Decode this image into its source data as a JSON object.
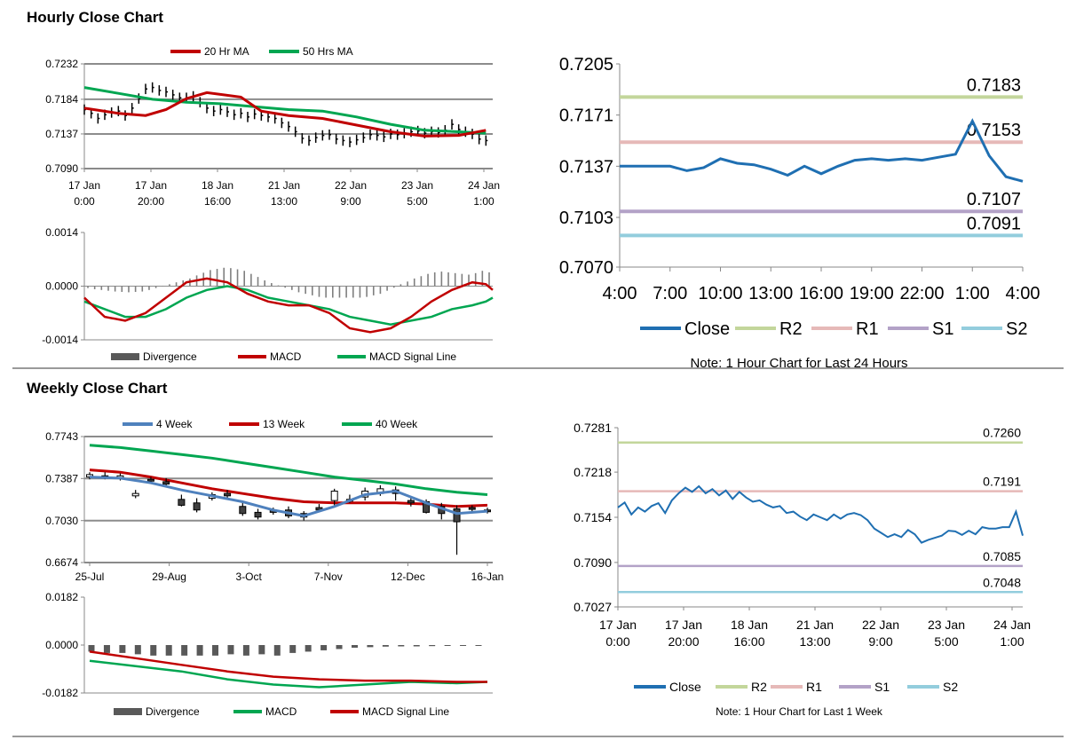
{
  "titles": {
    "hourly": "Hourly Close Chart",
    "weekly": "Weekly Close Chart"
  },
  "colors": {
    "red": "#c00000",
    "green": "#00a651",
    "blue": "#4f81bd",
    "close": "#1f6fb2",
    "r2": "#c3d69b",
    "r1": "#e6b9b8",
    "s1": "#b3a2c7",
    "s2": "#93cddd",
    "bar": "#000000",
    "div": "#7f7f7f"
  },
  "chart_data": [
    {
      "id": "hourly-price",
      "type": "line",
      "title": "",
      "x_tick_labels": [
        [
          "17 Jan",
          "0:00"
        ],
        [
          "17 Jan",
          "20:00"
        ],
        [
          "18 Jan",
          "16:00"
        ],
        [
          "21 Jan",
          "13:00"
        ],
        [
          "22 Jan",
          "9:00"
        ],
        [
          "23 Jan",
          "5:00"
        ],
        [
          "24 Jan",
          "1:00"
        ]
      ],
      "y_ticks": [
        "0.7232",
        "0.7184",
        "0.7137",
        "0.7090"
      ],
      "ylim": [
        0.709,
        0.7232
      ],
      "xlim": [
        0,
        120
      ],
      "series": [
        {
          "name": "20 Hr MA",
          "x": [
            0,
            10,
            18,
            24,
            30,
            36,
            46,
            52,
            60,
            70,
            80,
            90,
            100,
            110,
            118
          ],
          "values": [
            0.7172,
            0.7165,
            0.7162,
            0.717,
            0.7185,
            0.7193,
            0.7187,
            0.7168,
            0.7162,
            0.7158,
            0.7149,
            0.714,
            0.7134,
            0.7135,
            0.7142
          ]
        },
        {
          "name": "50 Hrs MA",
          "x": [
            0,
            10,
            20,
            30,
            40,
            50,
            60,
            70,
            80,
            90,
            100,
            110,
            118
          ],
          "values": [
            0.72,
            0.7192,
            0.7184,
            0.718,
            0.7178,
            0.7174,
            0.717,
            0.7168,
            0.716,
            0.715,
            0.7142,
            0.714,
            0.7138
          ]
        }
      ],
      "price_bars_x": [
        0,
        2,
        4,
        6,
        8,
        10,
        12,
        14,
        16,
        18,
        20,
        22,
        24,
        26,
        28,
        30,
        32,
        34,
        36,
        38,
        40,
        42,
        44,
        46,
        48,
        50,
        52,
        54,
        56,
        58,
        60,
        62,
        64,
        66,
        68,
        70,
        72,
        74,
        76,
        78,
        80,
        82,
        84,
        86,
        88,
        90,
        92,
        94,
        96,
        98,
        100,
        102,
        104,
        106,
        108,
        110,
        112,
        114,
        116,
        118
      ],
      "price_bars_close": [
        0.717,
        0.7165,
        0.7158,
        0.7163,
        0.7166,
        0.7168,
        0.7162,
        0.7172,
        0.7185,
        0.7198,
        0.72,
        0.7196,
        0.7194,
        0.719,
        0.7186,
        0.7186,
        0.7188,
        0.718,
        0.7172,
        0.7168,
        0.717,
        0.7167,
        0.7163,
        0.7165,
        0.716,
        0.7164,
        0.7162,
        0.716,
        0.7158,
        0.7152,
        0.7147,
        0.714,
        0.7131,
        0.7128,
        0.7132,
        0.7135,
        0.7136,
        0.713,
        0.7128,
        0.7126,
        0.7129,
        0.7132,
        0.7136,
        0.7135,
        0.7133,
        0.7137,
        0.7136,
        0.7138,
        0.714,
        0.7141,
        0.7138,
        0.714,
        0.7139,
        0.7142,
        0.715,
        0.7143,
        0.714,
        0.7137,
        0.713,
        0.7128
      ],
      "legend_position": "top"
    },
    {
      "id": "hourly-macd",
      "type": "line",
      "y_ticks": [
        "0.0014",
        "0.0000",
        "-0.0014"
      ],
      "ylim": [
        -0.0014,
        0.0014
      ],
      "xlim": [
        0,
        120
      ],
      "divergence_values": [
        -5e-05,
        -8e-05,
        -0.0001,
        -0.00012,
        -0.00014,
        -0.00015,
        -0.00016,
        -0.00015,
        -0.00014,
        -0.0001,
        -5e-05,
        1e-05,
        5e-05,
        0.0001,
        0.00015,
        0.0002,
        0.00028,
        0.00035,
        0.00042,
        0.00045,
        0.00048,
        0.00047,
        0.00044,
        0.0004,
        0.00032,
        0.00024,
        0.00015,
        8e-05,
        2e-05,
        -4e-05,
        -0.0001,
        -0.00016,
        -0.0002,
        -0.00024,
        -0.00028,
        -0.0003,
        -0.0003,
        -0.0003,
        -0.0003,
        -0.0003,
        -0.0003,
        -0.00028,
        -0.00024,
        -0.0002,
        -0.00012,
        -4e-05,
        5e-05,
        0.00012,
        0.0002,
        0.00026,
        0.00032,
        0.00036,
        0.00038,
        0.00036,
        0.00034,
        0.00032,
        0.0003,
        0.00034,
        0.0004,
        0.00036
      ],
      "series": [
        {
          "name": "Divergence"
        },
        {
          "name": "MACD",
          "x": [
            0,
            6,
            12,
            18,
            24,
            30,
            36,
            42,
            48,
            54,
            60,
            66,
            72,
            78,
            84,
            90,
            96,
            102,
            108,
            114,
            118,
            120
          ],
          "values": [
            -0.0003,
            -0.0008,
            -0.0009,
            -0.0007,
            -0.0003,
            0.0001,
            0.0002,
            0.0001,
            -0.0002,
            -0.0004,
            -0.0005,
            -0.0005,
            -0.0007,
            -0.0011,
            -0.0012,
            -0.0011,
            -0.0008,
            -0.0004,
            -0.0001,
            0.0001,
            5e-05,
            -0.0001
          ]
        },
        {
          "name": "MACD Signal Line",
          "x": [
            0,
            6,
            12,
            18,
            24,
            30,
            36,
            42,
            48,
            54,
            60,
            66,
            72,
            78,
            84,
            90,
            96,
            102,
            108,
            114,
            118,
            120
          ],
          "values": [
            -0.0004,
            -0.0006,
            -0.0008,
            -0.0008,
            -0.0006,
            -0.0003,
            -0.0001,
            0,
            -0.0001,
            -0.0003,
            -0.0004,
            -0.0005,
            -0.0006,
            -0.0008,
            -0.0009,
            -0.001,
            -0.0009,
            -0.0008,
            -0.0006,
            -0.0005,
            -0.0004,
            -0.0003
          ]
        }
      ]
    },
    {
      "id": "hourly-24h",
      "type": "line",
      "note": "Note: 1 Hour Chart for Last 24 Hours",
      "x_ticks": [
        "4:00",
        "7:00",
        "10:00",
        "13:00",
        "16:00",
        "19:00",
        "22:00",
        "1:00",
        "4:00"
      ],
      "y_ticks": [
        "0.7205",
        "0.7171",
        "0.7137",
        "0.7103",
        "0.7070"
      ],
      "ylim": [
        0.707,
        0.7205
      ],
      "xlim": [
        0,
        24
      ],
      "levels": [
        {
          "name": "R2",
          "value": 0.7183,
          "label": "0.7183"
        },
        {
          "name": "R1",
          "value": 0.7153,
          "label": "0.7153"
        },
        {
          "name": "S1",
          "value": 0.7107,
          "label": "0.7107"
        },
        {
          "name": "S2",
          "value": 0.7091,
          "label": "0.7091"
        }
      ],
      "series": [
        {
          "name": "Close",
          "x": [
            0,
            1,
            2,
            3,
            4,
            5,
            6,
            7,
            8,
            9,
            10,
            11,
            12,
            13,
            14,
            15,
            16,
            17,
            18,
            19,
            20,
            21,
            22,
            23,
            24
          ],
          "values": [
            0.7137,
            0.7137,
            0.7137,
            0.7137,
            0.7134,
            0.7136,
            0.7142,
            0.7139,
            0.7138,
            0.7135,
            0.7131,
            0.7137,
            0.7132,
            0.7137,
            0.7141,
            0.7142,
            0.7141,
            0.7142,
            0.7141,
            0.7143,
            0.7145,
            0.7167,
            0.7144,
            0.713,
            0.7127
          ]
        }
      ],
      "legend": [
        "Close",
        "R2",
        "R1",
        "S1",
        "S2"
      ]
    },
    {
      "id": "weekly-price",
      "type": "line",
      "x_ticks": [
        "25-Jul",
        "29-Aug",
        "3-Oct",
        "7-Nov",
        "12-Dec",
        "16-Jan"
      ],
      "y_ticks": [
        "0.7743",
        "0.7387",
        "0.7030",
        "0.6674"
      ],
      "ylim": [
        0.6674,
        0.7743
      ],
      "xlim": [
        0,
        26
      ],
      "series": [
        {
          "name": "4 Week",
          "x": [
            0,
            2,
            4,
            6,
            8,
            10,
            12,
            14,
            16,
            18,
            20,
            22,
            24,
            26
          ],
          "values": [
            0.74,
            0.739,
            0.735,
            0.729,
            0.724,
            0.719,
            0.712,
            0.707,
            0.715,
            0.725,
            0.728,
            0.718,
            0.709,
            0.711
          ]
        },
        {
          "name": "13 Week",
          "x": [
            0,
            2,
            4,
            6,
            8,
            10,
            12,
            14,
            16,
            18,
            20,
            22,
            24,
            26
          ],
          "values": [
            0.746,
            0.744,
            0.74,
            0.735,
            0.73,
            0.726,
            0.722,
            0.719,
            0.718,
            0.718,
            0.718,
            0.717,
            0.715,
            0.716
          ]
        },
        {
          "name": "40 Week",
          "x": [
            0,
            2,
            4,
            6,
            8,
            10,
            12,
            14,
            16,
            18,
            20,
            22,
            24,
            26
          ],
          "values": [
            0.767,
            0.765,
            0.762,
            0.759,
            0.756,
            0.752,
            0.748,
            0.744,
            0.74,
            0.737,
            0.734,
            0.73,
            0.727,
            0.725
          ]
        }
      ],
      "candles_x": [
        0,
        1,
        2,
        3,
        4,
        5,
        6,
        7,
        8,
        9,
        10,
        11,
        12,
        13,
        14,
        15,
        16,
        17,
        18,
        19,
        20,
        21,
        22,
        23,
        24,
        25,
        26
      ],
      "candles_open": [
        0.74,
        0.741,
        0.74,
        0.724,
        0.738,
        0.736,
        0.721,
        0.718,
        0.722,
        0.726,
        0.715,
        0.71,
        0.712,
        0.712,
        0.709,
        0.714,
        0.72,
        0.721,
        0.723,
        0.726,
        0.729,
        0.72,
        0.719,
        0.715,
        0.713,
        0.714,
        0.712
      ],
      "candles_close": [
        0.742,
        0.74,
        0.741,
        0.726,
        0.737,
        0.734,
        0.716,
        0.712,
        0.725,
        0.724,
        0.709,
        0.706,
        0.71,
        0.707,
        0.706,
        0.712,
        0.728,
        0.721,
        0.728,
        0.73,
        0.726,
        0.718,
        0.71,
        0.709,
        0.702,
        0.713,
        0.711
      ],
      "candles_high": [
        0.744,
        0.744,
        0.743,
        0.729,
        0.74,
        0.739,
        0.725,
        0.722,
        0.727,
        0.729,
        0.719,
        0.713,
        0.714,
        0.715,
        0.711,
        0.717,
        0.73,
        0.725,
        0.731,
        0.733,
        0.732,
        0.723,
        0.721,
        0.718,
        0.716,
        0.716,
        0.714
      ],
      "candles_low": [
        0.738,
        0.738,
        0.737,
        0.722,
        0.735,
        0.732,
        0.715,
        0.71,
        0.72,
        0.722,
        0.707,
        0.704,
        0.708,
        0.705,
        0.703,
        0.71,
        0.715,
        0.718,
        0.72,
        0.724,
        0.72,
        0.715,
        0.709,
        0.704,
        0.674,
        0.71,
        0.709
      ],
      "legend_position": "top"
    },
    {
      "id": "weekly-macd",
      "type": "line",
      "y_ticks": [
        "0.0182",
        "0.0000",
        "-0.0182"
      ],
      "ylim": [
        -0.0182,
        0.0182
      ],
      "xlim": [
        0,
        26
      ],
      "divergence_values": [
        -0.0025,
        -0.003,
        -0.003,
        -0.0035,
        -0.004,
        -0.004,
        -0.004,
        -0.004,
        -0.004,
        -0.0035,
        -0.004,
        -0.0035,
        -0.004,
        -0.003,
        -0.0025,
        -0.002,
        -0.0015,
        -0.001,
        -0.0008,
        -0.0006,
        -0.0005,
        -0.0005,
        -0.0004,
        -0.0003,
        -0.0003,
        -0.0002
      ],
      "series": [
        {
          "name": "Divergence"
        },
        {
          "name": "MACD",
          "x": [
            0,
            3,
            6,
            9,
            12,
            15,
            18,
            21,
            24,
            26
          ],
          "values": [
            -0.006,
            -0.008,
            -0.01,
            -0.013,
            -0.015,
            -0.016,
            -0.015,
            -0.014,
            -0.0145,
            -0.014
          ]
        },
        {
          "name": "MACD Signal Line",
          "x": [
            0,
            3,
            6,
            9,
            12,
            15,
            18,
            21,
            24,
            26
          ],
          "values": [
            -0.0025,
            -0.005,
            -0.0075,
            -0.01,
            -0.012,
            -0.013,
            -0.0135,
            -0.0135,
            -0.014,
            -0.014
          ]
        }
      ]
    },
    {
      "id": "weekly-1w",
      "type": "line",
      "note": "Note: 1 Hour Chart for Last 1 Week",
      "x_tick_labels": [
        [
          "17 Jan",
          "0:00"
        ],
        [
          "17 Jan",
          "20:00"
        ],
        [
          "18 Jan",
          "16:00"
        ],
        [
          "21 Jan",
          "13:00"
        ],
        [
          "22 Jan",
          "9:00"
        ],
        [
          "23 Jan",
          "5:00"
        ],
        [
          "24 Jan",
          "1:00"
        ]
      ],
      "y_ticks": [
        "0.7281",
        "0.7218",
        "0.7154",
        "0.7090",
        "0.7027"
      ],
      "ylim": [
        0.7027,
        0.7281
      ],
      "xlim": [
        0,
        120
      ],
      "levels": [
        {
          "name": "R2",
          "value": 0.726,
          "label": "0.7260"
        },
        {
          "name": "R1",
          "value": 0.7191,
          "label": "0.7191"
        },
        {
          "name": "S1",
          "value": 0.7085,
          "label": "0.7085"
        },
        {
          "name": "S2",
          "value": 0.7048,
          "label": "0.7048"
        }
      ],
      "series": [
        {
          "name": "Close",
          "x": [
            0,
            2,
            4,
            6,
            8,
            10,
            12,
            14,
            16,
            18,
            20,
            22,
            24,
            26,
            28,
            30,
            32,
            34,
            36,
            38,
            40,
            42,
            44,
            46,
            48,
            50,
            52,
            54,
            56,
            58,
            60,
            62,
            64,
            66,
            68,
            70,
            72,
            74,
            76,
            78,
            80,
            82,
            84,
            86,
            88,
            90,
            92,
            94,
            96,
            98,
            100,
            102,
            104,
            106,
            108,
            110,
            112,
            114,
            116,
            118,
            120
          ],
          "values": [
            0.7168,
            0.7175,
            0.7158,
            0.7168,
            0.7162,
            0.717,
            0.7174,
            0.716,
            0.7178,
            0.7188,
            0.7196,
            0.719,
            0.7198,
            0.7188,
            0.7194,
            0.7185,
            0.7192,
            0.718,
            0.719,
            0.7182,
            0.7176,
            0.7178,
            0.7172,
            0.7168,
            0.717,
            0.716,
            0.7162,
            0.7155,
            0.715,
            0.7158,
            0.7154,
            0.715,
            0.7158,
            0.7152,
            0.7158,
            0.716,
            0.7157,
            0.715,
            0.7138,
            0.7132,
            0.7126,
            0.713,
            0.7126,
            0.7136,
            0.713,
            0.7118,
            0.7122,
            0.7125,
            0.7128,
            0.7135,
            0.7134,
            0.7129,
            0.7135,
            0.713,
            0.714,
            0.7138,
            0.7138,
            0.714,
            0.714,
            0.7162,
            0.7128
          ]
        }
      ],
      "legend": [
        "Close",
        "R2",
        "R1",
        "S1",
        "S2"
      ]
    }
  ]
}
